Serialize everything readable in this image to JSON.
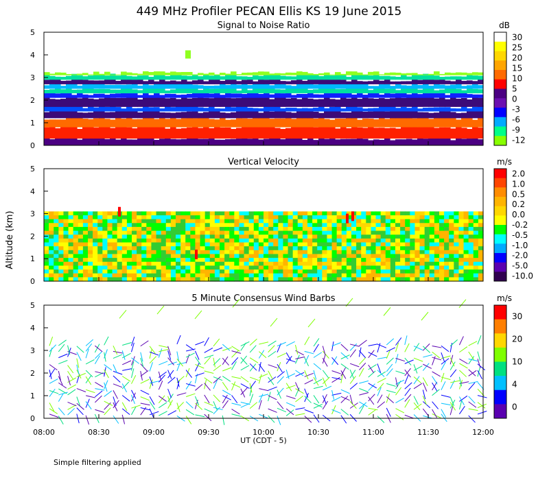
{
  "figure": {
    "title": "449 MHz Profiler PECAN Ellis KS 19 June 2015",
    "ylabel": "Altitude (km)",
    "xlabel": "UT (CDT - 5)",
    "footnote": "Simple filtering applied",
    "xticks": [
      "08:00",
      "08:30",
      "09:00",
      "09:30",
      "10:00",
      "10:30",
      "11:00",
      "11:30",
      "12:00"
    ],
    "yticks": [
      "0",
      "1",
      "2",
      "3",
      "4",
      "5"
    ]
  },
  "chart_data": [
    {
      "type": "heatmap",
      "title": "Signal to Noise Ratio",
      "unit": "dB",
      "xlabel": "UT (CDT - 5)",
      "ylabel": "Altitude (km)",
      "xlim": [
        "08:00",
        "12:00"
      ],
      "ylim": [
        0,
        5
      ],
      "colorbar_labels": [
        "30",
        "25",
        "20",
        "15",
        "10",
        "5",
        "0",
        "-3",
        "-6",
        "-9",
        "-12"
      ],
      "colorbar_colors": [
        "#ffffff",
        "#ffff00",
        "#ffd700",
        "#ffa500",
        "#ff6a00",
        "#ff0000",
        "#4b0082",
        "#6b0fb0",
        "#0000ff",
        "#00aaff",
        "#00ff88",
        "#88ff00"
      ],
      "data_top_km": 3.2,
      "layers": [
        {
          "from_km": 0.0,
          "to_km": 0.3,
          "level": "0"
        },
        {
          "from_km": 0.3,
          "to_km": 0.8,
          "level": "10 to 15"
        },
        {
          "from_km": 0.8,
          "to_km": 1.2,
          "level": "5 to 10"
        },
        {
          "from_km": 1.2,
          "to_km": 1.5,
          "level": "0 to 5"
        },
        {
          "from_km": 1.5,
          "to_km": 1.7,
          "level": "-3 to -6"
        },
        {
          "from_km": 1.7,
          "to_km": 2.1,
          "level": "0 to 5"
        },
        {
          "from_km": 2.1,
          "to_km": 2.3,
          "level": "-3"
        },
        {
          "from_km": 2.3,
          "to_km": 2.5,
          "level": "-9"
        },
        {
          "from_km": 2.5,
          "to_km": 2.7,
          "level": "-6"
        },
        {
          "from_km": 2.7,
          "to_km": 2.9,
          "level": "0 to 5"
        },
        {
          "from_km": 2.9,
          "to_km": 3.1,
          "level": "-9"
        },
        {
          "from_km": 3.1,
          "to_km": 3.2,
          "level": "-12"
        }
      ]
    },
    {
      "type": "heatmap",
      "title": "Vertical Velocity",
      "unit": "m/s",
      "xlabel": "UT (CDT - 5)",
      "ylabel": "Altitude (km)",
      "xlim": [
        "08:00",
        "12:00"
      ],
      "ylim": [
        0,
        5
      ],
      "colorbar_labels": [
        "2.0",
        "1.0",
        "0.5",
        "0.2",
        "0.0",
        "-0.2",
        "-0.5",
        "-1.0",
        "-2.0",
        "-5.0",
        "-10.0"
      ],
      "colorbar_colors": [
        "#ff0000",
        "#ff4500",
        "#ff8c00",
        "#ffb400",
        "#ffd700",
        "#ffff00",
        "#00ff00",
        "#00ffff",
        "#00aaff",
        "#0000ff",
        "#5a00b0",
        "#300050"
      ],
      "data_top_km": 3.1,
      "dominant_levels": [
        "0.0",
        "-0.2",
        "-0.5"
      ]
    },
    {
      "type": "scatter",
      "title": "5 Minute Consensus Wind Barbs",
      "unit": "m/s",
      "xlabel": "UT (CDT - 5)",
      "ylabel": "Altitude (km)",
      "xlim": [
        "08:00",
        "12:00"
      ],
      "ylim": [
        0,
        5
      ],
      "colorbar_labels": [
        "30",
        "20",
        "10",
        "4",
        "0"
      ],
      "colorbar_colors": [
        "#ff0000",
        "#ff7f00",
        "#ffd700",
        "#7fff00",
        "#00e080",
        "#00c0ff",
        "#0000ff",
        "#5a00b0"
      ],
      "description_levels": "wind barbs from near surface to about 3.5 km, sparse up to 5 km"
    }
  ]
}
